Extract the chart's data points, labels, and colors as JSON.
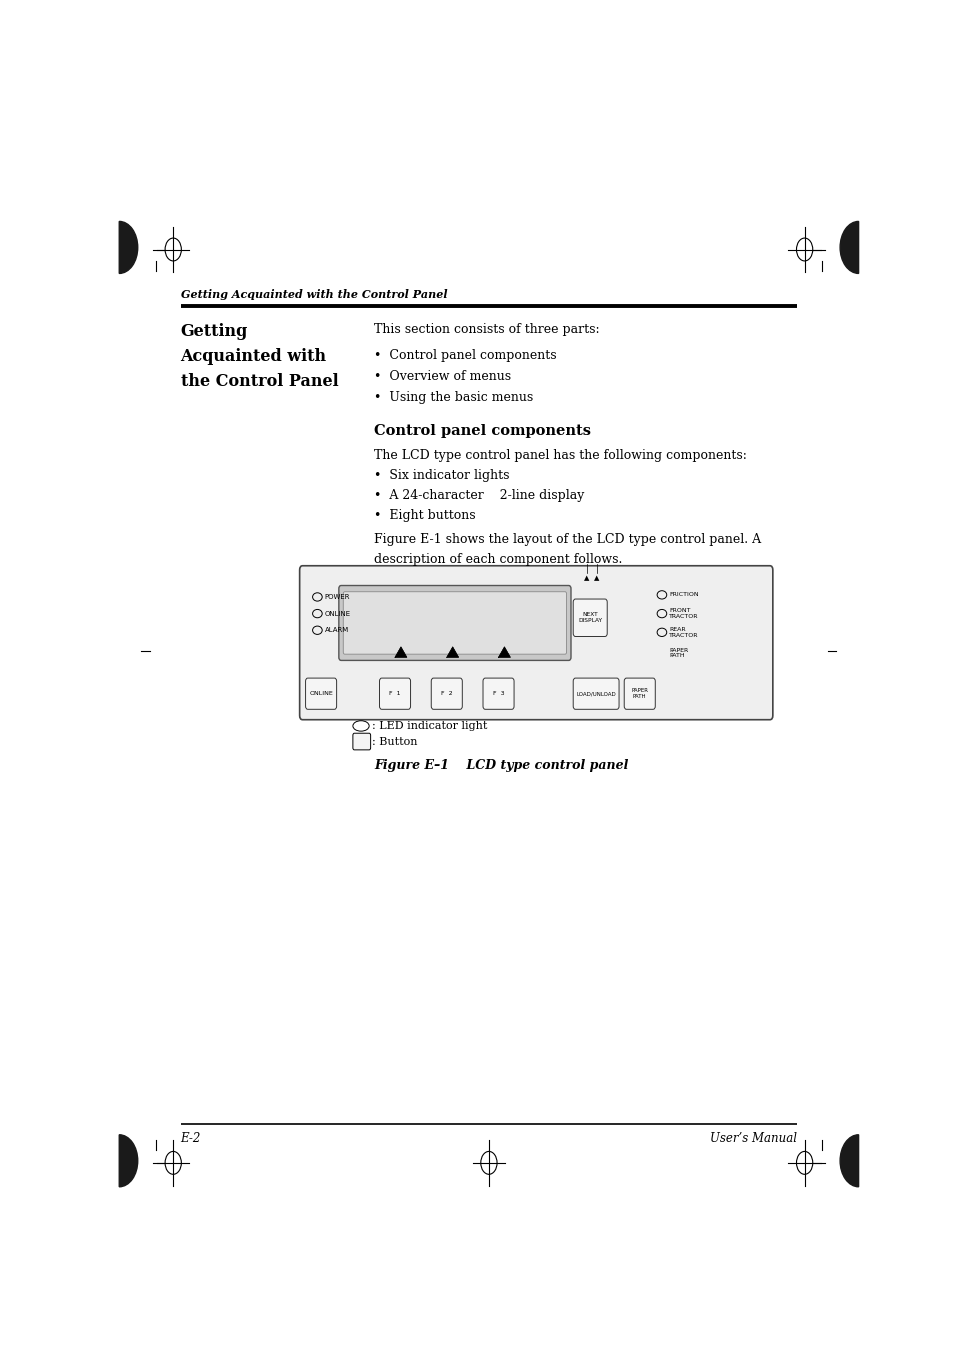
{
  "bg_color": "#ffffff",
  "page_width": 9.54,
  "page_height": 13.51,
  "header_italic_bold": "Getting Acquainted with the Control Panel",
  "bullet_items": [
    "Control panel components",
    "Overview of menus",
    "Using the basic menus"
  ],
  "subsection_title": "Control panel components",
  "body_text_1": "The LCD type control panel has the following components:",
  "body_bullets": [
    "Six indicator lights",
    "A 24-character    2-line display",
    "Eight buttons"
  ],
  "figure_caption": "Figure E–1    LCD type control panel",
  "legend_led": ": LED indicator light",
  "legend_button": ": Button",
  "footer_left": "E-2",
  "footer_right": "User’s Manual"
}
